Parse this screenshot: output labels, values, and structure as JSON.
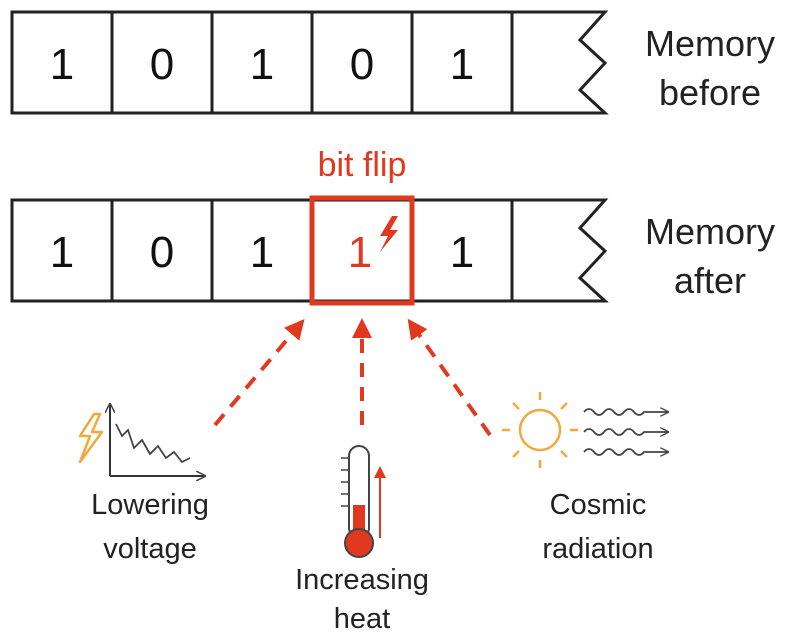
{
  "memory_before": {
    "bits": [
      "1",
      "0",
      "1",
      "0",
      "1"
    ],
    "label_line1": "Memory",
    "label_line2": "before"
  },
  "memory_after": {
    "bits": [
      "1",
      "0",
      "1",
      "1",
      "1"
    ],
    "flipped_index": 3,
    "label_line1": "Memory",
    "label_line2": "after"
  },
  "bit_flip_label": "bit flip",
  "causes": {
    "voltage": {
      "line1": "Lowering",
      "line2": "voltage",
      "icon": "voltage-drop-icon"
    },
    "heat": {
      "line1": "Increasing",
      "line2": "heat",
      "icon": "thermometer-icon"
    },
    "radiation": {
      "line1": "Cosmic",
      "line2": "radiation",
      "icon": "sun-icon"
    }
  },
  "colors": {
    "accent": "#e0391f",
    "orange": "#f2a93b",
    "stroke": "#222222"
  }
}
